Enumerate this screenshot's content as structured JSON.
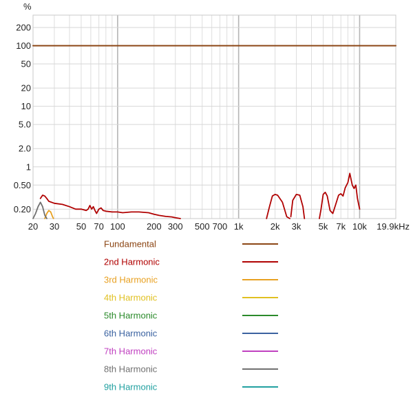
{
  "chart_data": {
    "type": "line",
    "title": "",
    "y_unit": "%",
    "x_scale": "log",
    "y_scale": "log",
    "xlim": [
      20,
      19900
    ],
    "ylim": [
      0.14,
      320
    ],
    "grid": true,
    "legend_position": "bottom",
    "x_ticks": [
      {
        "value": 20,
        "label": "20"
      },
      {
        "value": 30,
        "label": "30"
      },
      {
        "value": 50,
        "label": "50"
      },
      {
        "value": 70,
        "label": "70"
      },
      {
        "value": 100,
        "label": "100"
      },
      {
        "value": 200,
        "label": "200"
      },
      {
        "value": 300,
        "label": "300"
      },
      {
        "value": 500,
        "label": "500"
      },
      {
        "value": 700,
        "label": "700"
      },
      {
        "value": 1000,
        "label": "1k"
      },
      {
        "value": 2000,
        "label": "2k"
      },
      {
        "value": 3000,
        "label": "3k"
      },
      {
        "value": 5000,
        "label": "5k"
      },
      {
        "value": 7000,
        "label": "7k"
      },
      {
        "value": 10000,
        "label": "10k"
      },
      {
        "value": 19900,
        "label": "19.9kHz"
      }
    ],
    "y_ticks": [
      {
        "value": 200,
        "label": "200"
      },
      {
        "value": 100,
        "label": "100"
      },
      {
        "value": 50,
        "label": "50"
      },
      {
        "value": 20,
        "label": "20"
      },
      {
        "value": 10,
        "label": "10"
      },
      {
        "value": 5,
        "label": "5.0"
      },
      {
        "value": 2,
        "label": "2.0"
      },
      {
        "value": 1,
        "label": "1"
      },
      {
        "value": 0.5,
        "label": "0.50"
      },
      {
        "value": 0.2,
        "label": "0.20"
      }
    ],
    "series": [
      {
        "name": "Fundamental",
        "color": "#8b4513",
        "segments": [
          [
            [
              20,
              100
            ],
            [
              19900,
              100
            ]
          ]
        ]
      },
      {
        "name": "2nd Harmonic",
        "color": "#b00000",
        "segments": [
          [
            [
              23,
              0.3
            ],
            [
              24,
              0.34
            ],
            [
              25,
              0.33
            ],
            [
              26,
              0.3
            ],
            [
              27,
              0.27
            ],
            [
              30,
              0.25
            ],
            [
              35,
              0.24
            ],
            [
              40,
              0.22
            ],
            [
              45,
              0.2
            ],
            [
              50,
              0.2
            ],
            [
              55,
              0.19
            ],
            [
              57,
              0.2
            ],
            [
              59,
              0.23
            ],
            [
              61,
              0.2
            ],
            [
              63,
              0.22
            ],
            [
              65,
              0.19
            ],
            [
              67,
              0.17
            ],
            [
              70,
              0.2
            ],
            [
              73,
              0.21
            ],
            [
              76,
              0.19
            ],
            [
              80,
              0.185
            ],
            [
              90,
              0.18
            ],
            [
              100,
              0.18
            ],
            [
              110,
              0.175
            ],
            [
              130,
              0.18
            ],
            [
              150,
              0.18
            ],
            [
              180,
              0.175
            ],
            [
              200,
              0.165
            ],
            [
              220,
              0.158
            ],
            [
              250,
              0.152
            ],
            [
              280,
              0.149
            ],
            [
              300,
              0.145
            ],
            [
              330,
              0.14
            ]
          ],
          [
            [
              1700,
              0.14
            ],
            [
              1800,
              0.22
            ],
            [
              1900,
              0.33
            ],
            [
              2000,
              0.35
            ],
            [
              2100,
              0.34
            ],
            [
              2300,
              0.26
            ],
            [
              2500,
              0.15
            ],
            [
              2650,
              0.14
            ]
          ],
          [
            [
              2700,
              0.15
            ],
            [
              2800,
              0.28
            ],
            [
              3000,
              0.35
            ],
            [
              3200,
              0.34
            ],
            [
              3400,
              0.22
            ],
            [
              3500,
              0.14
            ]
          ],
          [
            [
              4650,
              0.14
            ],
            [
              4800,
              0.2
            ],
            [
              5000,
              0.35
            ],
            [
              5200,
              0.38
            ],
            [
              5400,
              0.33
            ],
            [
              5700,
              0.19
            ],
            [
              6000,
              0.17
            ],
            [
              6300,
              0.23
            ],
            [
              6700,
              0.34
            ],
            [
              7000,
              0.36
            ],
            [
              7300,
              0.33
            ],
            [
              7600,
              0.45
            ],
            [
              8000,
              0.55
            ],
            [
              8300,
              0.78
            ],
            [
              8700,
              0.5
            ],
            [
              9000,
              0.44
            ],
            [
              9300,
              0.5
            ],
            [
              9600,
              0.3
            ],
            [
              10000,
              0.2
            ]
          ]
        ]
      },
      {
        "name": "3rd Harmonic",
        "color": "#e8a020",
        "segments": [
          [
            [
              25,
              0.14
            ],
            [
              26,
              0.17
            ],
            [
              27,
              0.19
            ],
            [
              28,
              0.18
            ],
            [
              29,
              0.15
            ],
            [
              29.5,
              0.14
            ]
          ]
        ]
      },
      {
        "name": "4th Harmonic",
        "color": "#e0c020",
        "segments": []
      },
      {
        "name": "5th Harmonic",
        "color": "#2a8a2a",
        "segments": []
      },
      {
        "name": "6th Harmonic",
        "color": "#3a62a0",
        "segments": []
      },
      {
        "name": "7th Harmonic",
        "color": "#c040c0",
        "segments": []
      },
      {
        "name": "8th Harmonic",
        "color": "#707070",
        "segments": [
          [
            [
              20,
              0.14
            ],
            [
              21,
              0.17
            ],
            [
              22,
              0.22
            ],
            [
              23,
              0.26
            ],
            [
              24,
              0.22
            ],
            [
              25,
              0.16
            ],
            [
              26,
              0.14
            ]
          ]
        ]
      },
      {
        "name": "9th Harmonic",
        "color": "#20a0a0",
        "segments": []
      }
    ]
  }
}
